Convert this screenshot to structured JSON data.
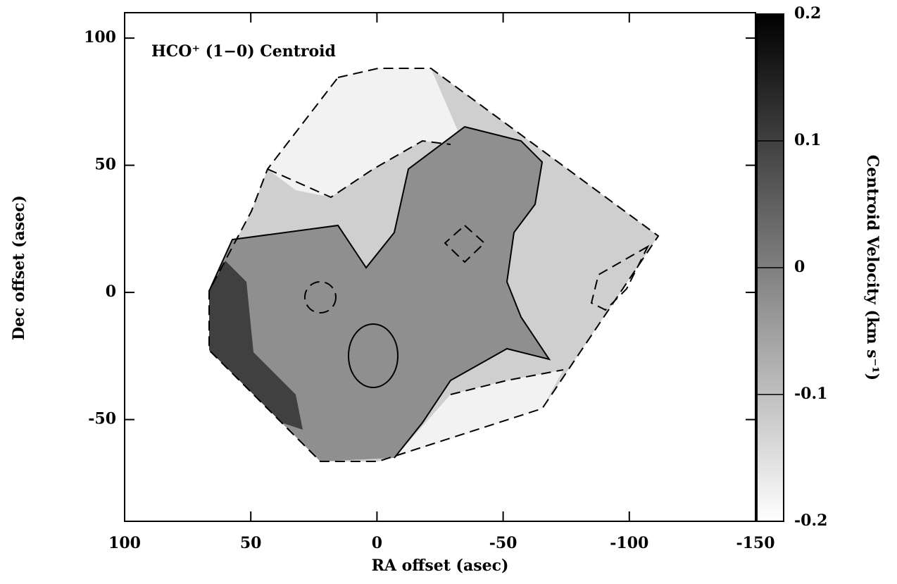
{
  "chart_data": {
    "type": "contour",
    "title": "HCO⁺ (1−0) Centroid",
    "x_label": "RA offset (asec)",
    "y_label": "Dec offset (asec)",
    "colorbar_label": "Centroid Velocity (km s⁻¹)",
    "xlim": [
      100,
      -150
    ],
    "xticks": [
      100,
      50,
      0,
      -50,
      -100,
      -150
    ],
    "ylim": [
      -90,
      110
    ],
    "yticks": [
      100,
      50,
      0,
      -50
    ],
    "clim": [
      -0.2,
      0.2
    ],
    "cticks": [
      -0.2,
      -0.1,
      0,
      0.1,
      0.2
    ],
    "colormap": [
      "#ffffff",
      "#000000"
    ]
  }
}
